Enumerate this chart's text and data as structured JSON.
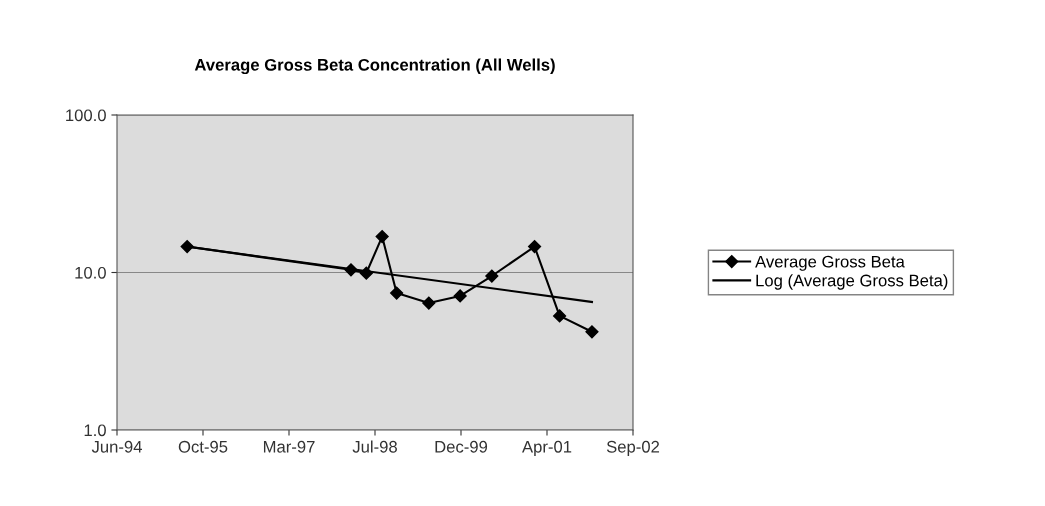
{
  "chart_data": {
    "type": "line",
    "title": "Average Gross Beta Concentration (All Wells)",
    "log": true,
    "grid": "y",
    "legend": "right",
    "line_style": "solid",
    "xlim": [
      "1994-06-01",
      "2002-09-17"
    ],
    "xticks": [
      {
        "value": "1994-06-01",
        "label": "Jun-94"
      },
      {
        "value": "1995-10-19",
        "label": "Oct-95"
      },
      {
        "value": "1997-03-07",
        "label": "Mar-97"
      },
      {
        "value": "1998-07-25",
        "label": "Jul-98"
      },
      {
        "value": "1999-12-12",
        "label": "Dec-99"
      },
      {
        "value": "2001-04-30",
        "label": "Apr-01"
      },
      {
        "value": "2002-09-17",
        "label": "Sep-02"
      }
    ],
    "ylim": [
      1,
      100
    ],
    "yticks": [
      {
        "value": 1,
        "label": "1.0"
      },
      {
        "value": 10,
        "label": "10.0"
      },
      {
        "value": 100,
        "label": "100.0"
      }
    ],
    "series": [
      {
        "name": "Average Gross Beta",
        "color": "#000000",
        "marker": "diamond",
        "x": [
          "1995-07-18",
          "1998-03-06",
          "1998-06-04",
          "1998-09-05",
          "1998-11-29",
          "1999-06-06",
          "1999-12-07",
          "2000-06-10",
          "2001-02-16",
          "2001-07-13",
          "2002-01-19"
        ],
        "values": [
          14.6,
          10.4,
          9.9,
          16.9,
          7.4,
          6.4,
          7.1,
          9.5,
          14.6,
          5.3,
          4.2
        ]
      },
      {
        "name": "Log (Average Gross Beta)",
        "color": "#000000",
        "marker": "none",
        "x": [
          "1995-07-18",
          "2002-01-19"
        ],
        "values": [
          14.6,
          6.5
        ]
      }
    ]
  }
}
